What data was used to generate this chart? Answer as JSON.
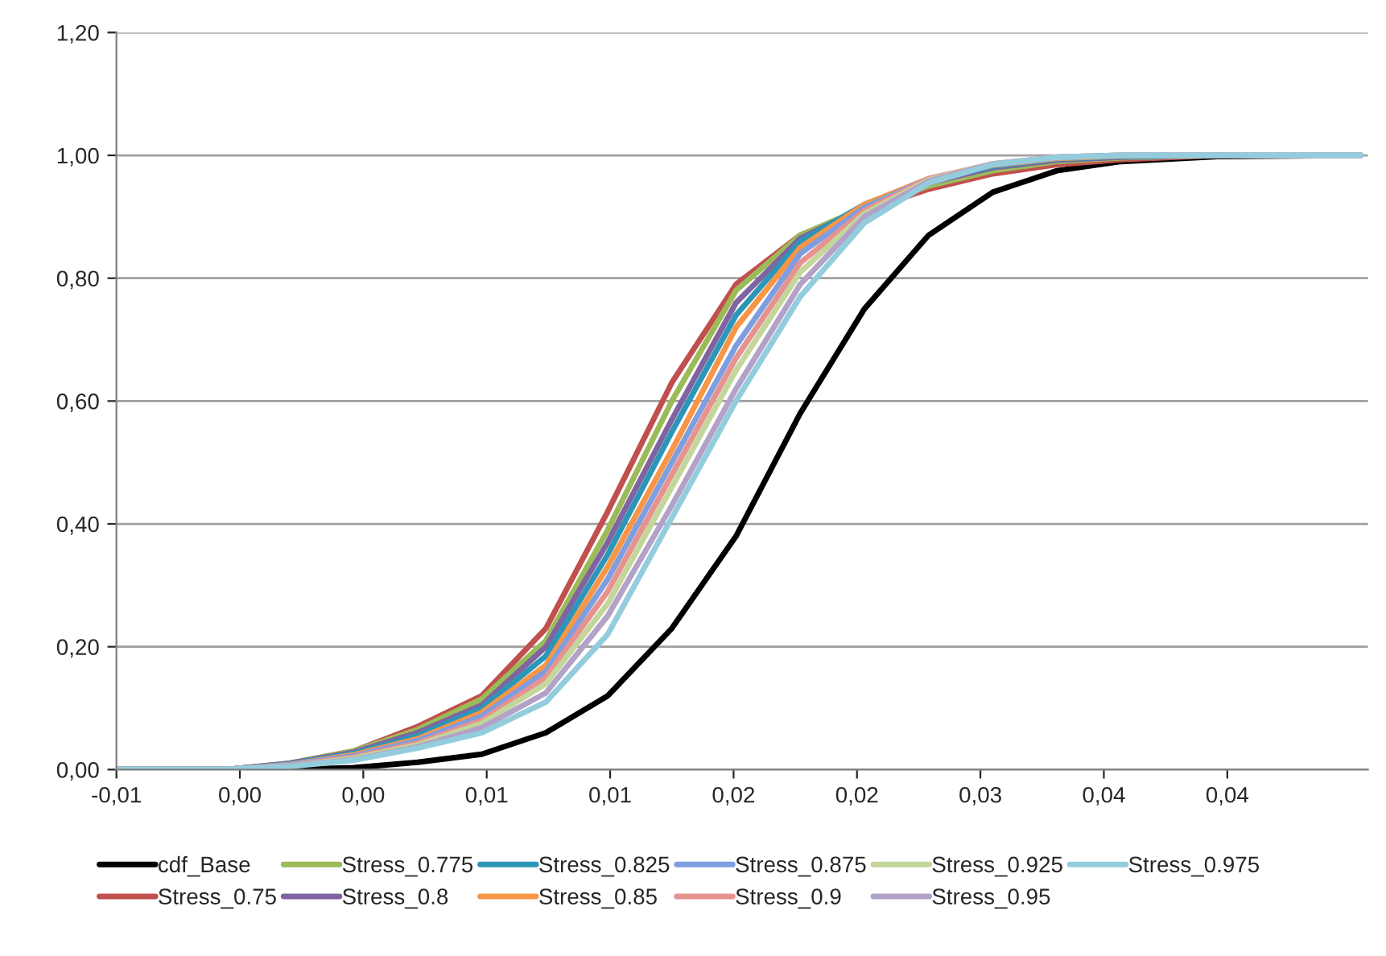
{
  "chart_data": {
    "type": "line",
    "x": [
      -0.005,
      -0.0006,
      0.002,
      0.0046,
      0.0072,
      0.0098,
      0.0124,
      0.0149,
      0.0175,
      0.0201,
      0.0227,
      0.0253,
      0.0279,
      0.0305,
      0.0331,
      0.0357,
      0.0396,
      0.0454
    ],
    "series": [
      {
        "name": "cdf_Base",
        "color": "#000000",
        "values": [
          0,
          0,
          0,
          0.003,
          0.012,
          0.025,
          0.06,
          0.12,
          0.23,
          0.38,
          0.58,
          0.75,
          0.87,
          0.94,
          0.975,
          0.99,
          0.998,
          1
        ]
      },
      {
        "name": "Stress_0.75",
        "color": "#c0504d",
        "values": [
          0,
          0,
          0.01,
          0.03,
          0.07,
          0.12,
          0.23,
          0.42,
          0.63,
          0.79,
          0.87,
          0.91,
          0.945,
          0.97,
          0.985,
          0.993,
          1,
          1
        ]
      },
      {
        "name": "Stress_0.775",
        "color": "#9bbb59",
        "values": [
          0,
          0,
          0.01,
          0.03,
          0.065,
          0.115,
          0.21,
          0.39,
          0.6,
          0.78,
          0.87,
          0.915,
          0.95,
          0.975,
          0.99,
          0.996,
          1,
          1
        ]
      },
      {
        "name": "Stress_0.8",
        "color": "#8064a2",
        "values": [
          0,
          0,
          0.01,
          0.028,
          0.06,
          0.105,
          0.2,
          0.37,
          0.57,
          0.76,
          0.865,
          0.915,
          0.955,
          0.98,
          0.992,
          0.997,
          1,
          1
        ]
      },
      {
        "name": "Stress_0.825",
        "color": "#2c96b8",
        "values": [
          0,
          0,
          0.009,
          0.026,
          0.055,
          0.1,
          0.185,
          0.35,
          0.55,
          0.74,
          0.86,
          0.92,
          0.96,
          0.982,
          0.994,
          0.998,
          1,
          1
        ]
      },
      {
        "name": "Stress_0.85",
        "color": "#f79646",
        "values": [
          0,
          0,
          0.008,
          0.024,
          0.05,
          0.093,
          0.17,
          0.33,
          0.52,
          0.72,
          0.85,
          0.92,
          0.962,
          0.984,
          0.995,
          0.999,
          1,
          1
        ]
      },
      {
        "name": "Stress_0.875",
        "color": "#7e9ee0",
        "values": [
          0,
          0,
          0.008,
          0.022,
          0.047,
          0.087,
          0.16,
          0.31,
          0.5,
          0.69,
          0.84,
          0.915,
          0.962,
          0.985,
          0.996,
          1,
          1,
          1
        ]
      },
      {
        "name": "Stress_0.9",
        "color": "#e6938f",
        "values": [
          0,
          0,
          0.007,
          0.02,
          0.043,
          0.08,
          0.15,
          0.29,
          0.48,
          0.67,
          0.825,
          0.91,
          0.962,
          0.986,
          0.997,
          1,
          1,
          1
        ]
      },
      {
        "name": "Stress_0.925",
        "color": "#c3d69b",
        "values": [
          0,
          0,
          0.006,
          0.018,
          0.04,
          0.075,
          0.14,
          0.27,
          0.46,
          0.65,
          0.81,
          0.905,
          0.96,
          0.986,
          0.997,
          1,
          1,
          1
        ]
      },
      {
        "name": "Stress_0.95",
        "color": "#b3a2c7",
        "values": [
          0,
          0,
          0.006,
          0.016,
          0.037,
          0.068,
          0.125,
          0.25,
          0.43,
          0.62,
          0.79,
          0.9,
          0.958,
          0.986,
          0.997,
          1,
          1,
          1
        ]
      },
      {
        "name": "Stress_0.975",
        "color": "#93cddd",
        "values": [
          0,
          0,
          0.005,
          0.015,
          0.035,
          0.06,
          0.11,
          0.22,
          0.41,
          0.6,
          0.77,
          0.89,
          0.955,
          0.985,
          0.997,
          1,
          1,
          1
        ]
      }
    ],
    "xlim": [
      -0.005,
      0.0457
    ],
    "xticks": [
      {
        "value": -0.005,
        "label": "-0,01"
      },
      {
        "value": 0.0,
        "label": "0,00"
      },
      {
        "value": 0.005,
        "label": "0,00"
      },
      {
        "value": 0.01,
        "label": "0,01"
      },
      {
        "value": 0.015,
        "label": "0,01"
      },
      {
        "value": 0.02,
        "label": "0,02"
      },
      {
        "value": 0.025,
        "label": "0,02"
      },
      {
        "value": 0.03,
        "label": "0,03"
      },
      {
        "value": 0.035,
        "label": "0,04"
      },
      {
        "value": 0.04,
        "label": "0,04"
      }
    ],
    "ylim": [
      0,
      1.2
    ],
    "yticks": [
      {
        "value": 0,
        "label": "0,00"
      },
      {
        "value": 0.2,
        "label": "0,20"
      },
      {
        "value": 0.4,
        "label": "0,40"
      },
      {
        "value": 0.6,
        "label": "0,60"
      },
      {
        "value": 0.8,
        "label": "0,80"
      },
      {
        "value": 1.0,
        "label": "1,00"
      },
      {
        "value": 1.2,
        "label": "1,20"
      }
    ],
    "grid": "y",
    "legend": "bottom",
    "marker": "none",
    "line_style": "solid"
  }
}
